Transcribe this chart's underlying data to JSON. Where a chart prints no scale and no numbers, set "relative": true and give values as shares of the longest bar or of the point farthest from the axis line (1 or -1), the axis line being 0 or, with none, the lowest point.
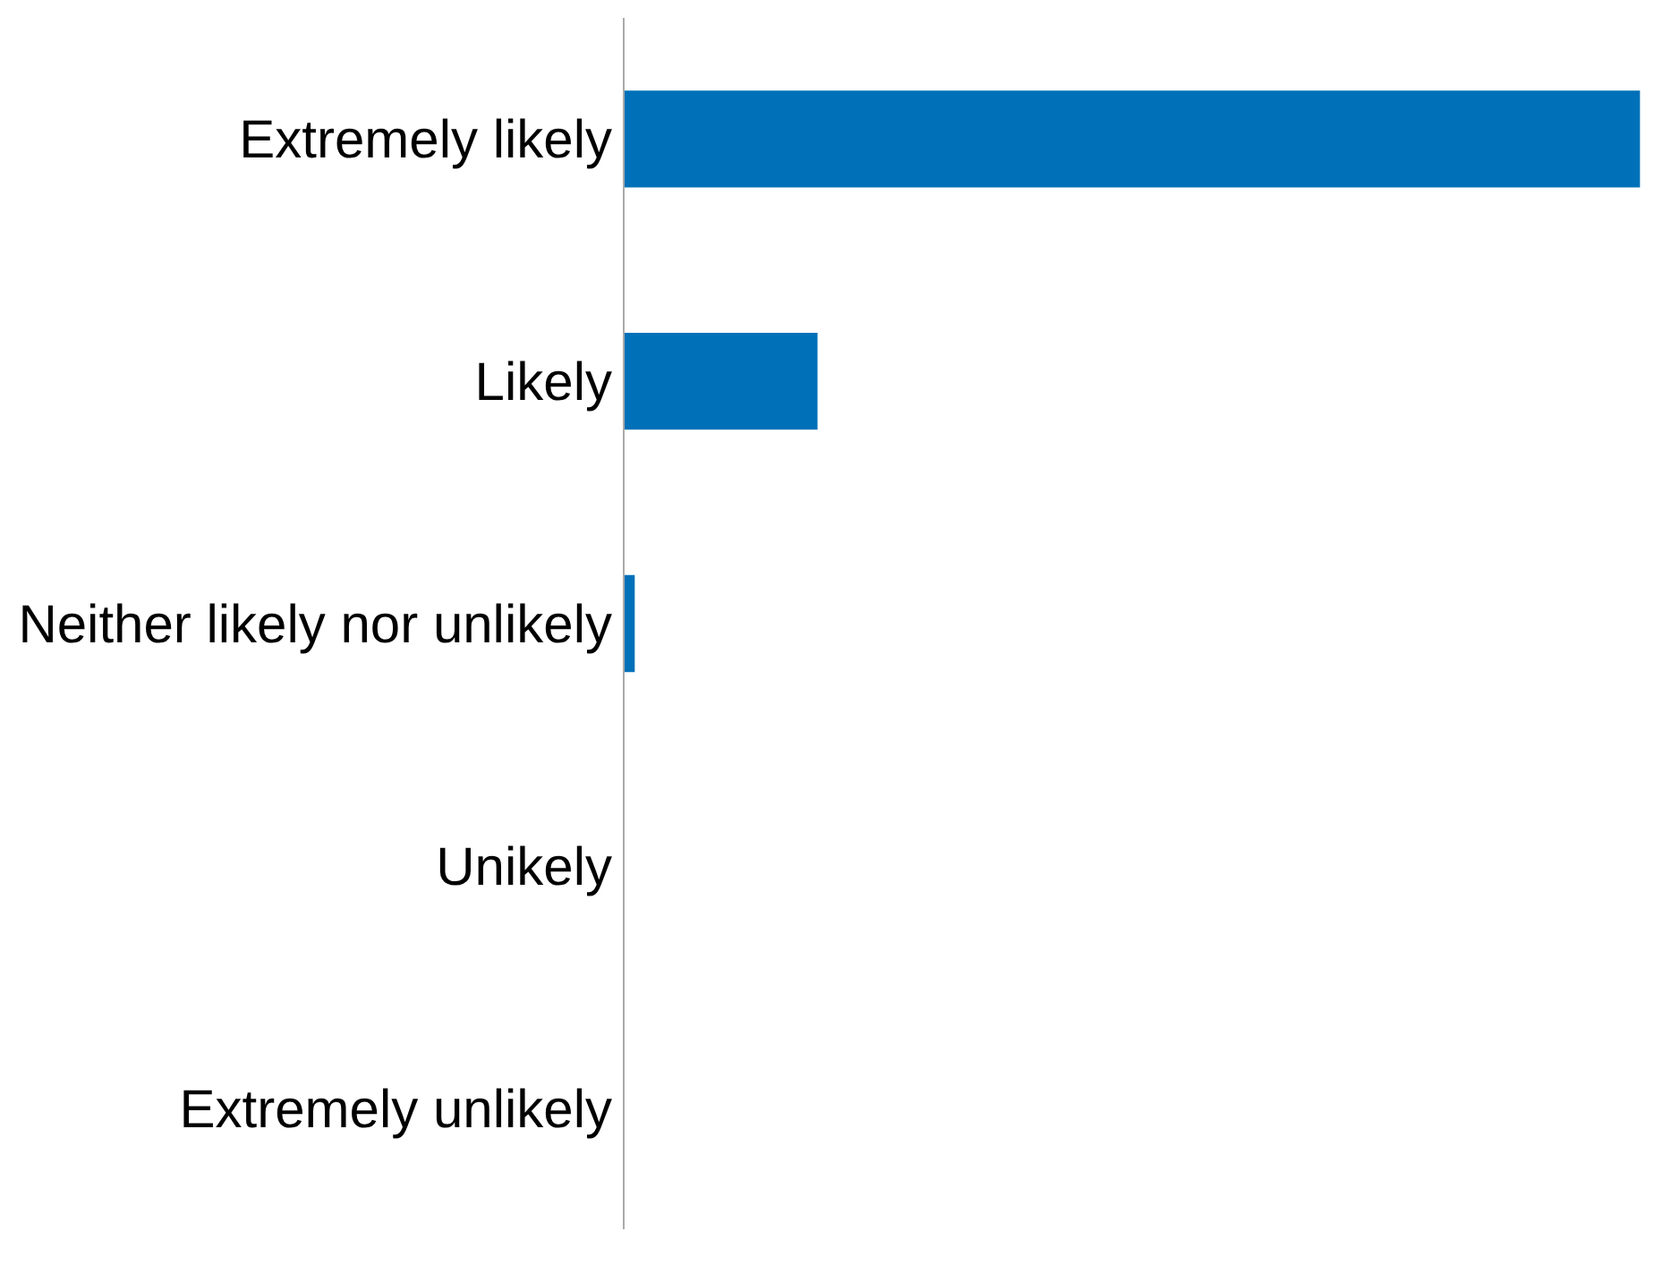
{
  "chart_data": {
    "type": "bar",
    "orientation": "horizontal",
    "relative": true,
    "categories": [
      "Extremely likely",
      "Likely",
      "Neither likely nor unlikely",
      "Unikely",
      "Extremely unlikely"
    ],
    "values": [
      1,
      0.19,
      0.01,
      0,
      0
    ],
    "color": "#0070b8"
  }
}
